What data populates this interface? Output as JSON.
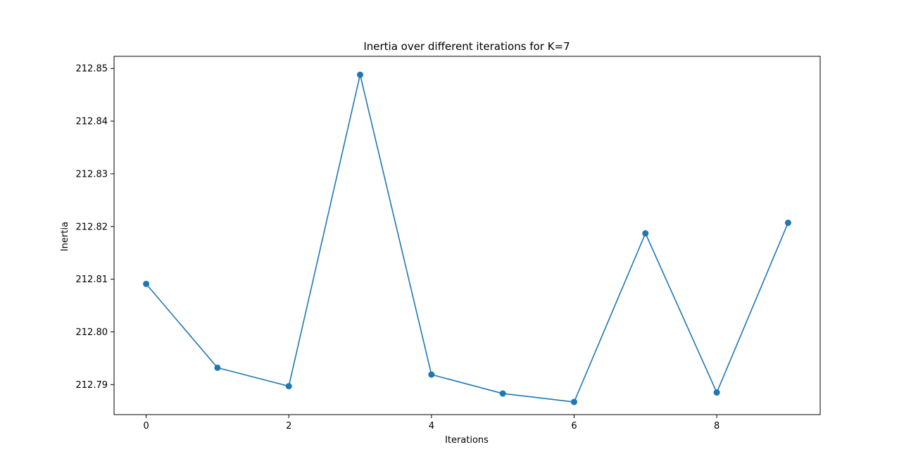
{
  "chart_data": {
    "type": "line",
    "title": "Inertia over different iterations for K=7",
    "xlabel": "Iterations",
    "ylabel": "Inertia",
    "x": [
      0,
      1,
      2,
      3,
      4,
      5,
      6,
      7,
      8,
      9
    ],
    "series": [
      {
        "values": [
          212.8091,
          212.7932,
          212.7897,
          212.8488,
          212.7919,
          212.7883,
          212.7867,
          212.8187,
          212.7885,
          212.8207
        ],
        "color": "#1f77b4",
        "marker": "circle"
      }
    ],
    "xlim": [
      -0.45,
      9.45
    ],
    "ylim": [
      212.7843,
      212.8523
    ],
    "x_ticks": [
      0,
      2,
      4,
      6,
      8
    ],
    "x_tick_labels": [
      "0",
      "2",
      "4",
      "6",
      "8"
    ],
    "y_ticks": [
      212.79,
      212.8,
      212.81,
      212.82,
      212.83,
      212.84,
      212.85
    ],
    "y_tick_labels": [
      "212.79",
      "212.80",
      "212.81",
      "212.82",
      "212.83",
      "212.84",
      "212.85"
    ],
    "grid": false,
    "legend": "none"
  }
}
